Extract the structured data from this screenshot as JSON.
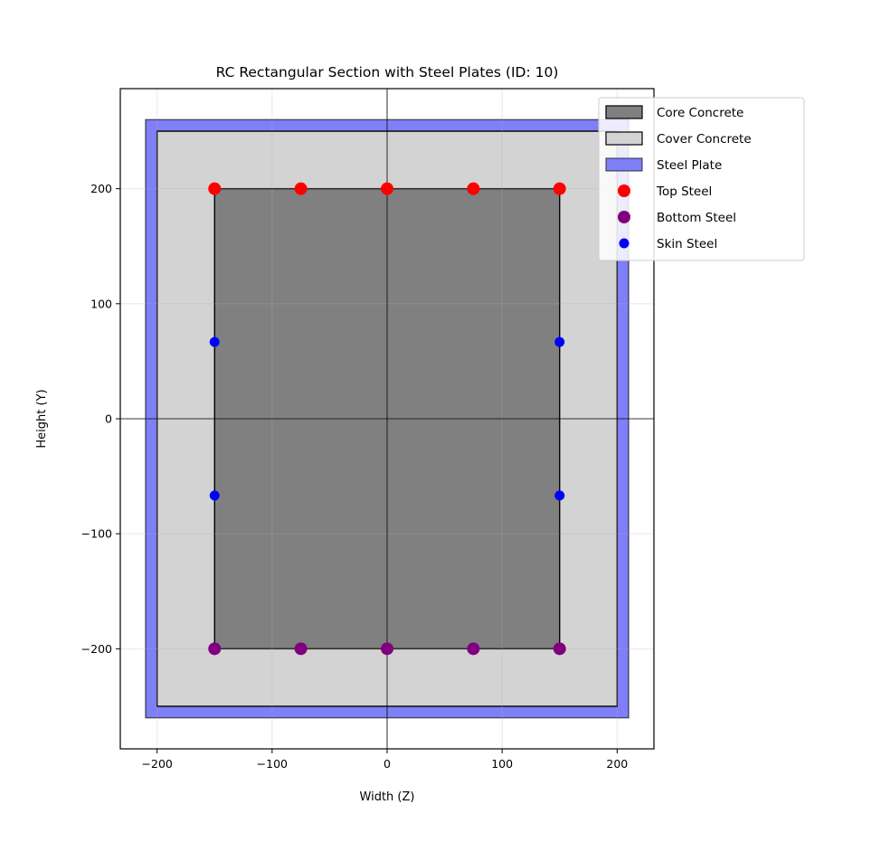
{
  "chart_data": {
    "type": "scatter",
    "title": "RC Rectangular Section with Steel Plates (ID: 10)",
    "xlabel": "Width (Z)",
    "ylabel": "Height (Y)",
    "xlim": [
      -232,
      232
    ],
    "ylim": [
      -287,
      287
    ],
    "xticks": [
      -200,
      -100,
      0,
      100,
      200
    ],
    "yticks": [
      -200,
      -100,
      0,
      100,
      200
    ],
    "xtick_labels": [
      "−200",
      "−100",
      "0",
      "100",
      "200"
    ],
    "ytick_labels": [
      "−200",
      "−100",
      "0",
      "100",
      "200"
    ],
    "grid": true,
    "legend_position": "top-right",
    "regions": [
      {
        "name": "Steel Plate",
        "z": [
          -210,
          210
        ],
        "y": [
          -260,
          260
        ],
        "color": "#7f7ff7"
      },
      {
        "name": "Cover Concrete",
        "z": [
          -200,
          200
        ],
        "y": [
          -250,
          250
        ],
        "color": "#d3d3d3"
      },
      {
        "name": "Core Concrete",
        "z": [
          -150,
          150
        ],
        "y": [
          -200,
          200
        ],
        "color": "#808080"
      }
    ],
    "series": [
      {
        "name": "Top Steel",
        "color": "#ff0000",
        "size": "large",
        "points": [
          [
            -150,
            200
          ],
          [
            -75,
            200
          ],
          [
            0,
            200
          ],
          [
            75,
            200
          ],
          [
            150,
            200
          ]
        ]
      },
      {
        "name": "Bottom Steel",
        "color": "#800080",
        "size": "large",
        "points": [
          [
            -150,
            -200
          ],
          [
            -75,
            -200
          ],
          [
            0,
            -200
          ],
          [
            75,
            -200
          ],
          [
            150,
            -200
          ]
        ]
      },
      {
        "name": "Skin Steel",
        "color": "#0000ff",
        "size": "small",
        "points": [
          [
            -150,
            66.7
          ],
          [
            -150,
            -66.7
          ],
          [
            150,
            66.7
          ],
          [
            150,
            -66.7
          ]
        ]
      }
    ],
    "legend": [
      {
        "label": "Core Concrete",
        "kind": "patch",
        "fill": "#808080"
      },
      {
        "label": "Cover Concrete",
        "kind": "patch",
        "fill": "#d3d3d3"
      },
      {
        "label": "Steel Plate",
        "kind": "patch",
        "fill": "#7f7ff7"
      },
      {
        "label": "Top Steel",
        "kind": "marker",
        "fill": "#ff0000"
      },
      {
        "label": "Bottom Steel",
        "kind": "marker",
        "fill": "#800080"
      },
      {
        "label": "Skin Steel",
        "kind": "marker-small",
        "fill": "#0000ff"
      }
    ]
  }
}
